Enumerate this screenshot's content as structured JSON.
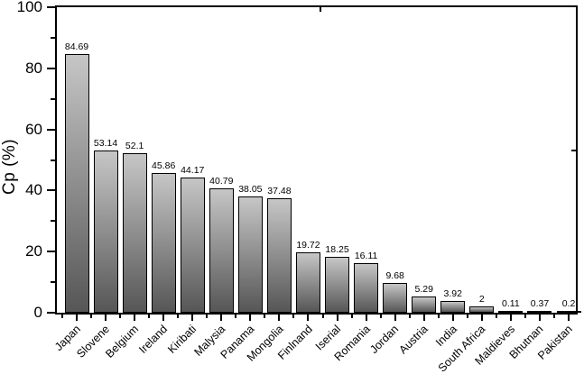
{
  "chart_data": {
    "type": "bar",
    "title": "",
    "xlabel": "",
    "ylabel": "Cp (%)",
    "ylim": [
      0,
      100
    ],
    "y_major_ticks": [
      0,
      20,
      40,
      60,
      80,
      100
    ],
    "y_minor_tick_interval": 10,
    "grid": false,
    "legend": "none",
    "x_tick_label_rotation_deg": 45,
    "categories": [
      "Japan",
      "Slovene",
      "Belgium",
      "Ireland",
      "Kiribati",
      "Malysia",
      "Panama",
      "Mongolia",
      "Finlnand",
      "Iserial",
      "Romania",
      "Jordan",
      "Austria",
      "India",
      "South Africa",
      "Maldieves",
      "Bhutnan",
      "Pakistan"
    ],
    "values": [
      84.69,
      53.14,
      52.1,
      45.86,
      44.17,
      40.79,
      38.05,
      37.48,
      19.72,
      18.25,
      16.11,
      9.68,
      5.29,
      3.92,
      2,
      0.11,
      0.37,
      0.2
    ],
    "bar_labels": [
      "84.69",
      "53.14",
      "52.1",
      "45.86",
      "44.17",
      "40.79",
      "38.05",
      "37.48",
      "19.72",
      "18.25",
      "16.11",
      "9.68",
      "5.29",
      "3.92",
      "2",
      "0.11",
      "0.37",
      "0.2"
    ],
    "colors": {
      "bar_gradient_top": "#c6c6c6",
      "bar_gradient_bottom": "#565656",
      "bar_border": "#000000",
      "axis": "#000000",
      "text": "#000000",
      "background": "#ffffff"
    }
  }
}
